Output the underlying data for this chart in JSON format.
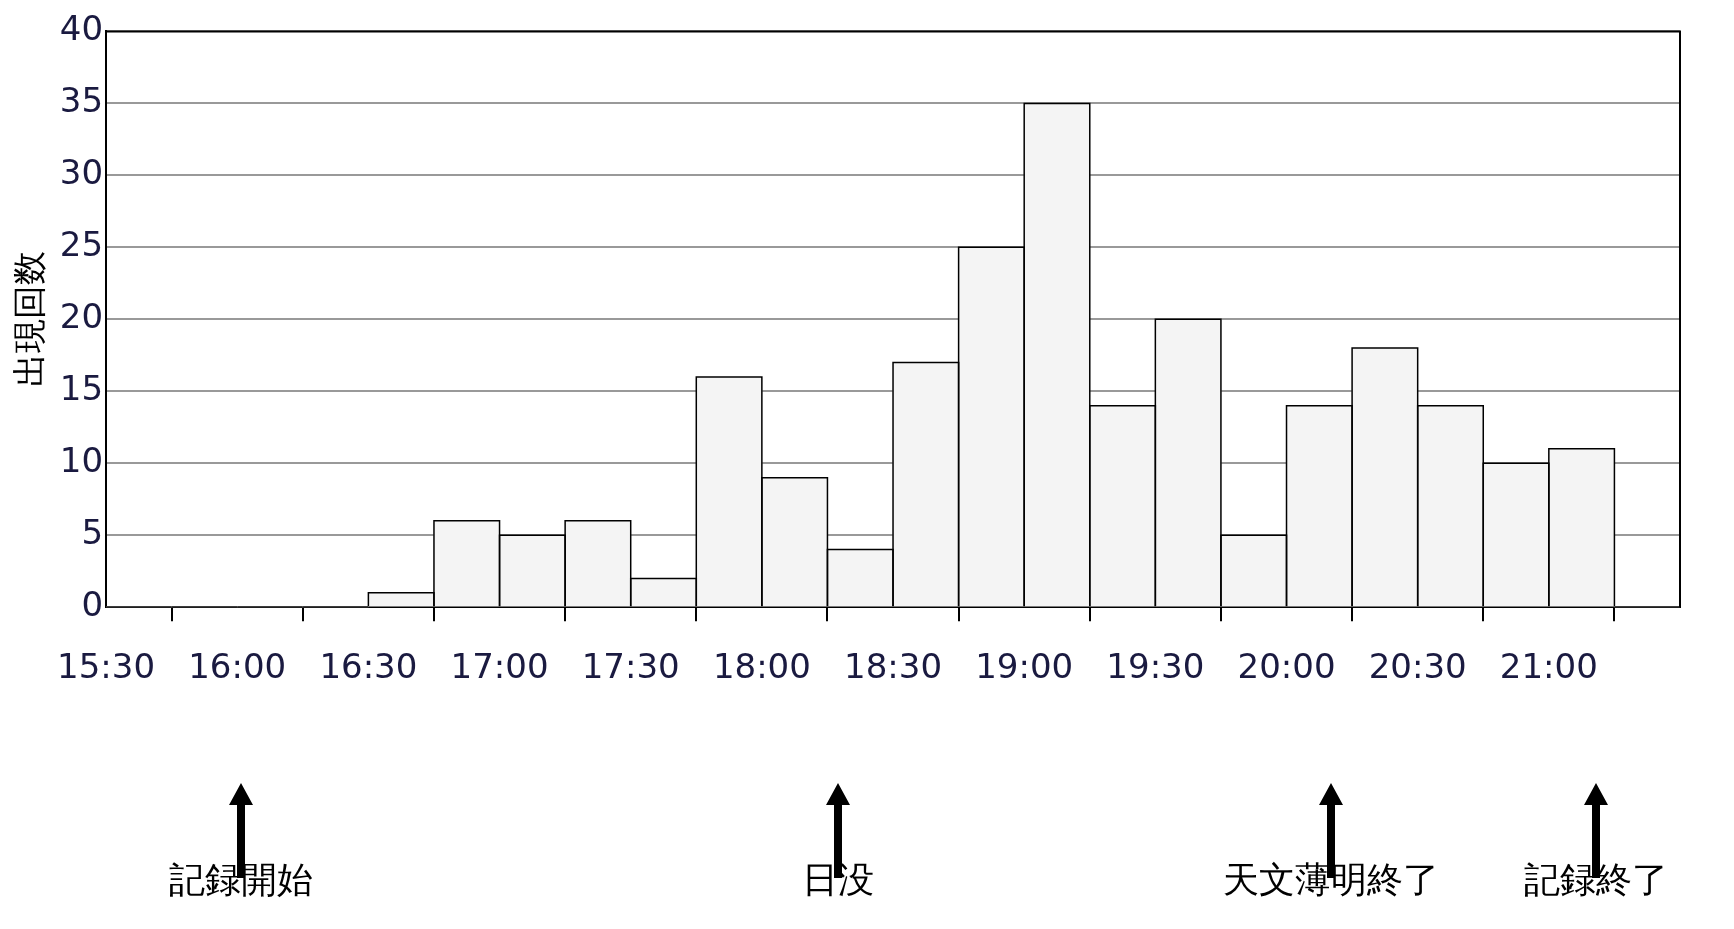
{
  "chart_data": {
    "type": "histogram",
    "ylabel": "出現回数",
    "bins": [
      15.5,
      15.75,
      16,
      16.25,
      16.5,
      16.75,
      17,
      17.25,
      17.5,
      17.75,
      18,
      18.25,
      18.5,
      18.75,
      19,
      19.25,
      19.5,
      19.75,
      20,
      20.25,
      20.5,
      20.75,
      21,
      21.25,
      21.5
    ],
    "values": [
      0,
      0,
      0,
      0,
      1,
      6,
      5,
      6,
      2,
      16,
      9,
      4,
      17,
      25,
      35,
      14,
      20,
      5,
      14,
      18,
      14,
      10,
      11,
      0
    ],
    "color": "#f4f4f4",
    "xlim": [
      15.5,
      21.5
    ],
    "xticks": [
      {
        "value": 15.5,
        "label": "15:30"
      },
      {
        "value": 16,
        "label": "16:00"
      },
      {
        "value": 16.5,
        "label": "16:30"
      },
      {
        "value": 17,
        "label": "17:00"
      },
      {
        "value": 17.5,
        "label": "17:30"
      },
      {
        "value": 18,
        "label": "18:00"
      },
      {
        "value": 18.5,
        "label": "18:30"
      },
      {
        "value": 19,
        "label": "19:00"
      },
      {
        "value": 19.5,
        "label": "19:30"
      },
      {
        "value": 20,
        "label": "20:00"
      },
      {
        "value": 20.5,
        "label": "20:30"
      },
      {
        "value": 21,
        "label": "21:00"
      },
      {
        "value": 21.5,
        "label": null
      }
    ],
    "ylim": [
      0,
      40
    ],
    "yticks": [
      0,
      5,
      10,
      15,
      20,
      25,
      30,
      35,
      40
    ],
    "grid": "y",
    "legend": false,
    "annotations": [
      "記録開始",
      "日没",
      "天文薄明終了",
      "記録終了"
    ]
  }
}
